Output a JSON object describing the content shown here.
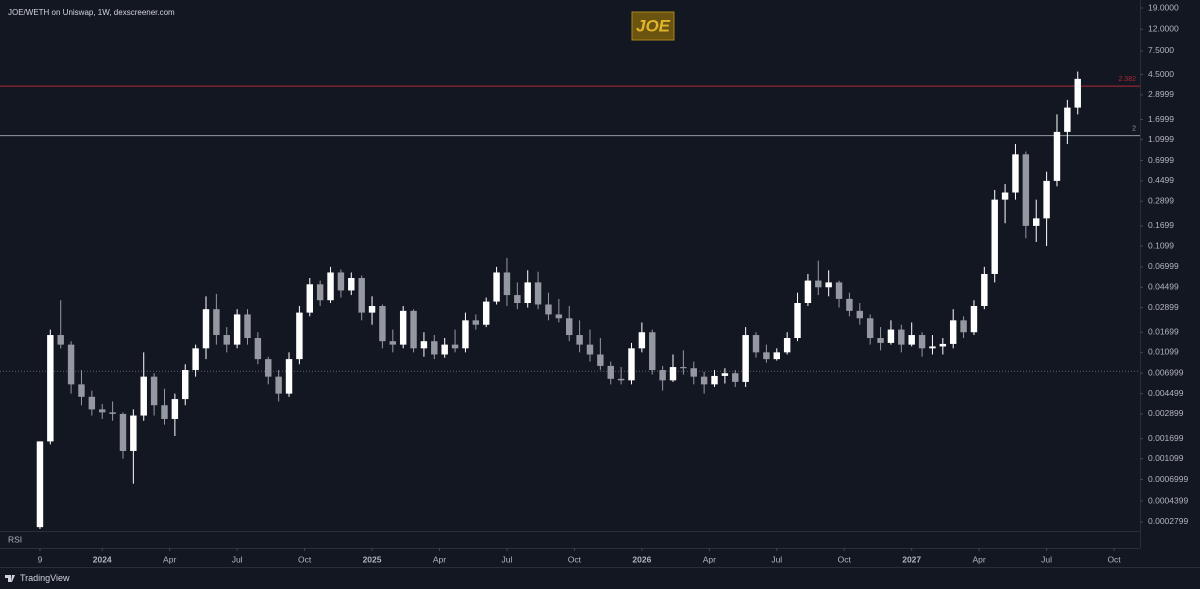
{
  "chart_data": {
    "type": "candlestick",
    "title": "JOE/WETH on Uniswap, 1W, dexscreener.com",
    "watermark": "JOE",
    "pane_label": "RSI",
    "source_brand": "TradingView",
    "log_scale": true,
    "grid": false,
    "up_color": "#ffffff",
    "down_color": "#9598a1",
    "xlim": [
      -7.7,
      212
    ],
    "xticks": [
      {
        "value": 0,
        "label": "9"
      },
      {
        "value": 12,
        "label": "2024"
      },
      {
        "value": 25,
        "label": "Apr"
      },
      {
        "value": 38,
        "label": "Jul"
      },
      {
        "value": 51,
        "label": "Oct"
      },
      {
        "value": 64,
        "label": "2025"
      },
      {
        "value": 77,
        "label": "Apr"
      },
      {
        "value": 90,
        "label": "Jul"
      },
      {
        "value": 103,
        "label": "Oct"
      },
      {
        "value": 116,
        "label": "2026"
      },
      {
        "value": 129,
        "label": "Apr"
      },
      {
        "value": 142,
        "label": "Jul"
      },
      {
        "value": 155,
        "label": "Oct"
      },
      {
        "value": 168,
        "label": "2027"
      },
      {
        "value": 181,
        "label": "Apr"
      },
      {
        "value": 194,
        "label": "Jul"
      },
      {
        "value": 207,
        "label": "Oct"
      }
    ],
    "ylim": [
      0.000235,
      22.6
    ],
    "yticks": [
      {
        "value": 19,
        "label": "19.0000"
      },
      {
        "value": 12,
        "label": "12.0000"
      },
      {
        "value": 7.5,
        "label": "7.5000"
      },
      {
        "value": 4.5,
        "label": "4.5000"
      },
      2.8999,
      1.6999,
      1.0999,
      0.6999,
      0.4499,
      0.2899,
      0.1699,
      0.1099,
      0.06999,
      0.04499,
      0.02899,
      0.01699,
      0.01099,
      0.006999,
      0.004499,
      0.002899,
      0.001699,
      0.001099,
      0.0006999,
      0.0004399,
      0.0002799
    ],
    "levels": [
      {
        "name": "2.382",
        "value": 3.5,
        "color": "#b22833",
        "dashed": false
      },
      {
        "name": "2",
        "value": 1.2,
        "color": "#9598a1",
        "dashed": false
      },
      {
        "value": 0.0073,
        "color": "#5d606b",
        "dashed": true
      }
    ],
    "x": [
      0,
      2,
      4,
      6,
      8,
      10,
      12,
      14,
      16,
      18,
      20,
      22,
      24,
      26,
      28,
      30,
      32,
      34,
      36,
      38,
      40,
      42,
      44,
      46,
      48,
      50,
      52,
      54,
      56,
      58,
      60,
      62,
      64,
      66,
      68,
      70,
      72,
      74,
      76,
      78,
      80,
      82,
      84,
      86,
      88,
      90,
      92,
      94,
      96,
      98,
      100,
      102,
      104,
      106,
      108,
      110,
      112,
      114,
      116,
      118,
      120,
      122,
      124,
      126,
      128,
      130,
      132,
      134,
      136,
      138,
      140,
      142,
      144,
      146,
      148,
      150,
      152,
      154,
      156,
      158,
      160,
      162,
      164,
      166,
      168,
      170,
      172,
      174,
      176,
      178,
      180,
      182,
      184,
      186,
      188,
      190,
      192,
      194,
      196,
      198,
      200
    ],
    "open": [
      0.00025,
      0.0016,
      0.016,
      0.013,
      0.0055,
      0.0042,
      0.0032,
      0.003,
      0.0029,
      0.0013,
      0.0028,
      0.0065,
      0.0035,
      0.0026,
      0.004,
      0.0075,
      0.012,
      0.028,
      0.016,
      0.013,
      0.025,
      0.015,
      0.0095,
      0.0065,
      0.0045,
      0.0095,
      0.026,
      0.048,
      0.034,
      0.062,
      0.042,
      0.055,
      0.026,
      0.03,
      0.014,
      0.013,
      0.027,
      0.012,
      0.014,
      0.0105,
      0.013,
      0.012,
      0.022,
      0.02,
      0.033,
      0.062,
      0.038,
      0.032,
      0.05,
      0.031,
      0.025,
      0.023,
      0.016,
      0.013,
      0.0105,
      0.0082,
      0.0062,
      0.006,
      0.012,
      0.017,
      0.0075,
      0.006,
      0.008,
      0.0078,
      0.0065,
      0.0055,
      0.0066,
      0.007,
      0.0058,
      0.016,
      0.011,
      0.0095,
      0.011,
      0.015,
      0.032,
      0.052,
      0.045,
      0.05,
      0.035,
      0.027,
      0.023,
      0.015,
      0.0135,
      0.018,
      0.013,
      0.016,
      0.012,
      0.0125,
      0.0132,
      0.022,
      0.017,
      0.03,
      0.06,
      0.3,
      0.35,
      0.8,
      0.17,
      0.2,
      0.45,
      1.3,
      2.2
    ],
    "high": [
      0.0016,
      0.018,
      0.034,
      0.014,
      0.0075,
      0.0048,
      0.0036,
      0.0038,
      0.003,
      0.0032,
      0.011,
      0.007,
      0.005,
      0.0045,
      0.0085,
      0.013,
      0.037,
      0.039,
      0.019,
      0.028,
      0.028,
      0.017,
      0.01,
      0.0075,
      0.011,
      0.03,
      0.055,
      0.052,
      0.07,
      0.066,
      0.062,
      0.058,
      0.037,
      0.031,
      0.018,
      0.03,
      0.028,
      0.017,
      0.016,
      0.015,
      0.018,
      0.026,
      0.025,
      0.036,
      0.07,
      0.085,
      0.05,
      0.065,
      0.063,
      0.04,
      0.035,
      0.03,
      0.022,
      0.018,
      0.015,
      0.009,
      0.008,
      0.0135,
      0.021,
      0.018,
      0.0082,
      0.0105,
      0.0115,
      0.009,
      0.0072,
      0.0075,
      0.0078,
      0.0075,
      0.019,
      0.017,
      0.013,
      0.012,
      0.017,
      0.04,
      0.06,
      0.08,
      0.065,
      0.052,
      0.04,
      0.032,
      0.025,
      0.019,
      0.022,
      0.02,
      0.021,
      0.017,
      0.016,
      0.015,
      0.028,
      0.024,
      0.034,
      0.07,
      0.37,
      0.42,
      1.0,
      0.85,
      0.3,
      0.55,
      1.9,
      2.6,
      4.8
    ],
    "low": [
      0.00024,
      0.0015,
      0.012,
      0.0045,
      0.0035,
      0.0028,
      0.0026,
      0.0025,
      0.0011,
      0.00064,
      0.0025,
      0.0028,
      0.0023,
      0.0018,
      0.0035,
      0.0065,
      0.0095,
      0.013,
      0.011,
      0.012,
      0.013,
      0.0085,
      0.0055,
      0.0038,
      0.0042,
      0.0085,
      0.024,
      0.03,
      0.032,
      0.036,
      0.038,
      0.022,
      0.02,
      0.012,
      0.011,
      0.012,
      0.011,
      0.01,
      0.0095,
      0.0098,
      0.011,
      0.011,
      0.018,
      0.019,
      0.031,
      0.03,
      0.028,
      0.029,
      0.028,
      0.022,
      0.021,
      0.014,
      0.011,
      0.009,
      0.0075,
      0.0055,
      0.0055,
      0.0055,
      0.011,
      0.0068,
      0.0048,
      0.0058,
      0.0068,
      0.0055,
      0.0045,
      0.0052,
      0.0056,
      0.0052,
      0.0052,
      0.0098,
      0.0088,
      0.0092,
      0.0105,
      0.014,
      0.03,
      0.038,
      0.037,
      0.029,
      0.024,
      0.02,
      0.013,
      0.0115,
      0.013,
      0.011,
      0.0125,
      0.01,
      0.0105,
      0.0105,
      0.012,
      0.015,
      0.016,
      0.028,
      0.05,
      0.18,
      0.3,
      0.13,
      0.12,
      0.11,
      0.4,
      1.0,
      1.9
    ],
    "close": [
      0.0016,
      0.016,
      0.013,
      0.0055,
      0.0042,
      0.0032,
      0.003,
      0.0029,
      0.0013,
      0.0028,
      0.0065,
      0.0035,
      0.0026,
      0.004,
      0.0075,
      0.012,
      0.028,
      0.016,
      0.013,
      0.025,
      0.015,
      0.0095,
      0.0065,
      0.0045,
      0.0095,
      0.026,
      0.048,
      0.034,
      0.062,
      0.042,
      0.055,
      0.026,
      0.03,
      0.014,
      0.013,
      0.027,
      0.012,
      0.014,
      0.0105,
      0.013,
      0.012,
      0.022,
      0.02,
      0.033,
      0.062,
      0.038,
      0.032,
      0.05,
      0.031,
      0.025,
      0.023,
      0.016,
      0.013,
      0.0105,
      0.0082,
      0.0062,
      0.006,
      0.012,
      0.017,
      0.0075,
      0.006,
      0.008,
      0.0078,
      0.0065,
      0.0055,
      0.0066,
      0.007,
      0.0058,
      0.016,
      0.011,
      0.0095,
      0.011,
      0.015,
      0.032,
      0.052,
      0.045,
      0.05,
      0.035,
      0.027,
      0.023,
      0.015,
      0.0135,
      0.018,
      0.013,
      0.016,
      0.012,
      0.0125,
      0.0132,
      0.022,
      0.017,
      0.03,
      0.06,
      0.3,
      0.35,
      0.8,
      0.17,
      0.2,
      0.45,
      1.3,
      2.2,
      4.1
    ]
  }
}
